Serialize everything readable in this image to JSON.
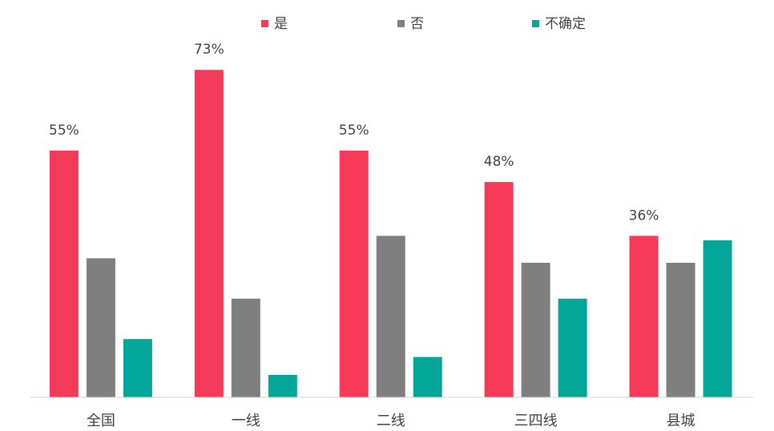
{
  "chart_data": {
    "type": "bar",
    "categories": [
      "全国",
      "一线",
      "二线",
      "三四线",
      "县城"
    ],
    "series": [
      {
        "name": "是",
        "color": "#f43a58",
        "values": [
          55,
          73,
          55,
          48,
          36
        ],
        "value_labels": [
          "55%",
          "73%",
          "55%",
          "48%",
          "36%"
        ]
      },
      {
        "name": "否",
        "color": "#7f7f7f",
        "values": [
          31,
          22,
          36,
          30,
          30
        ]
      },
      {
        "name": "不确定",
        "color": "#04a69a",
        "values": [
          13,
          5,
          9,
          22,
          35
        ]
      }
    ],
    "ylim": [
      0,
      80
    ],
    "legend": "top",
    "grid": false
  }
}
